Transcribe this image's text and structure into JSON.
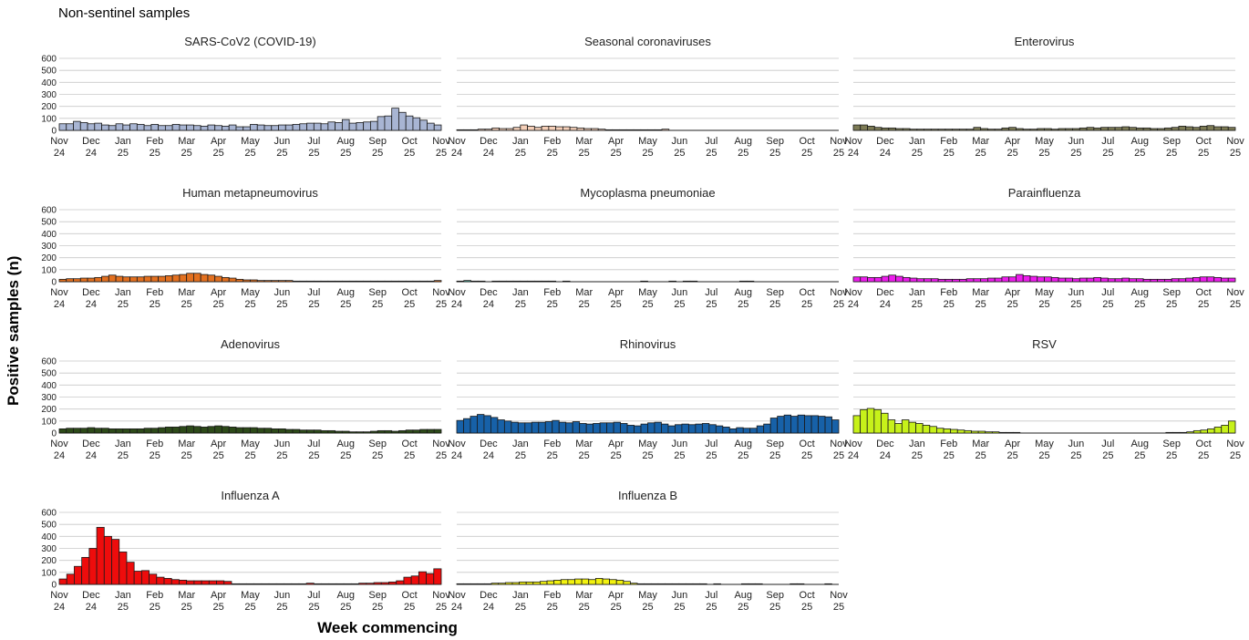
{
  "title": "Non-sentinel samples",
  "xlabel": "Week commencing",
  "ylabel": "Positive samples (n)",
  "chart_data": {
    "type": "bar",
    "ylim": [
      0,
      600
    ],
    "yticks": [
      0,
      100,
      200,
      300,
      400,
      500,
      600
    ],
    "grid": true,
    "x_tick_labels": [
      [
        "Nov",
        "24"
      ],
      [
        "Dec",
        "24"
      ],
      [
        "Jan",
        "25"
      ],
      [
        "Feb",
        "25"
      ],
      [
        "Mar",
        "25"
      ],
      [
        "Apr",
        "25"
      ],
      [
        "May",
        "25"
      ],
      [
        "Jun",
        "25"
      ],
      [
        "Jul",
        "25"
      ],
      [
        "Aug",
        "25"
      ],
      [
        "Sep",
        "25"
      ],
      [
        "Oct",
        "25"
      ],
      [
        "Nov",
        "25"
      ]
    ],
    "panels": [
      {
        "name": "SARS-CoV2 (COVID-19)",
        "color": "#a8b5d3",
        "values": [
          55,
          55,
          75,
          65,
          55,
          60,
          45,
          40,
          55,
          45,
          55,
          50,
          40,
          50,
          40,
          40,
          50,
          45,
          45,
          40,
          35,
          45,
          40,
          35,
          45,
          30,
          30,
          50,
          45,
          40,
          40,
          45,
          45,
          50,
          55,
          60,
          60,
          55,
          70,
          65,
          90,
          60,
          65,
          70,
          75,
          115,
          120,
          185,
          150,
          120,
          105,
          85,
          60,
          45
        ]
      },
      {
        "name": "Seasonal coronaviruses",
        "color": "#f5cfb8",
        "values": [
          5,
          5,
          5,
          10,
          10,
          20,
          15,
          15,
          25,
          45,
          35,
          25,
          35,
          35,
          30,
          30,
          25,
          20,
          15,
          15,
          10,
          5,
          5,
          5,
          5,
          5,
          5,
          5,
          5,
          10,
          0,
          0,
          0,
          0,
          0,
          0,
          0,
          0,
          0,
          0,
          0,
          0,
          0,
          0,
          0,
          0,
          0,
          0,
          0,
          0,
          0,
          0,
          0,
          0
        ]
      },
      {
        "name": "Enterovirus",
        "color": "#7d7b55",
        "values": [
          45,
          45,
          35,
          25,
          20,
          20,
          15,
          15,
          10,
          10,
          10,
          10,
          10,
          10,
          10,
          10,
          10,
          25,
          15,
          10,
          10,
          20,
          25,
          15,
          10,
          10,
          15,
          15,
          10,
          15,
          15,
          15,
          20,
          25,
          20,
          25,
          25,
          25,
          30,
          25,
          20,
          20,
          15,
          15,
          20,
          25,
          35,
          30,
          25,
          35,
          40,
          30,
          30,
          25
        ]
      },
      {
        "name": "Human metapneumovirus",
        "color": "#e3701f",
        "values": [
          20,
          25,
          25,
          30,
          30,
          35,
          45,
          55,
          45,
          40,
          40,
          40,
          45,
          45,
          45,
          50,
          55,
          60,
          70,
          70,
          60,
          55,
          45,
          35,
          30,
          20,
          15,
          15,
          10,
          10,
          10,
          10,
          10,
          5,
          5,
          5,
          5,
          5,
          5,
          5,
          5,
          5,
          5,
          5,
          5,
          5,
          5,
          5,
          5,
          5,
          5,
          5,
          5,
          10
        ]
      },
      {
        "name": "Mycoplasma pneumoniae",
        "color": "#52b7a4",
        "values": [
          5,
          10,
          5,
          5,
          0,
          5,
          5,
          5,
          5,
          5,
          5,
          5,
          5,
          5,
          0,
          5,
          0,
          0,
          0,
          0,
          0,
          0,
          0,
          0,
          0,
          0,
          5,
          0,
          0,
          0,
          5,
          0,
          5,
          5,
          0,
          0,
          0,
          0,
          0,
          0,
          5,
          5,
          0,
          0,
          0,
          0,
          0,
          0,
          0,
          0,
          0,
          0,
          0,
          0
        ]
      },
      {
        "name": "Parainfluenza",
        "color": "#ee1cee",
        "values": [
          40,
          40,
          35,
          35,
          45,
          55,
          45,
          35,
          30,
          25,
          25,
          25,
          20,
          20,
          20,
          20,
          25,
          25,
          25,
          30,
          30,
          40,
          40,
          60,
          50,
          45,
          40,
          40,
          35,
          30,
          30,
          25,
          30,
          30,
          35,
          30,
          25,
          25,
          30,
          25,
          25,
          20,
          20,
          20,
          20,
          25,
          25,
          30,
          35,
          40,
          40,
          35,
          30,
          30
        ]
      },
      {
        "name": "Adenovirus",
        "color": "#2d4a19",
        "values": [
          35,
          40,
          40,
          40,
          45,
          40,
          40,
          35,
          35,
          35,
          35,
          35,
          40,
          40,
          45,
          50,
          50,
          55,
          60,
          55,
          50,
          55,
          60,
          55,
          50,
          45,
          45,
          45,
          40,
          40,
          35,
          35,
          30,
          30,
          25,
          25,
          25,
          20,
          20,
          15,
          15,
          10,
          10,
          10,
          15,
          20,
          20,
          15,
          20,
          25,
          25,
          30,
          30,
          30
        ]
      },
      {
        "name": "Rhinovirus",
        "color": "#1761a8",
        "values": [
          105,
          120,
          140,
          155,
          145,
          130,
          110,
          100,
          90,
          85,
          85,
          90,
          90,
          95,
          105,
          90,
          85,
          95,
          80,
          75,
          80,
          85,
          85,
          90,
          80,
          65,
          60,
          75,
          85,
          90,
          75,
          60,
          70,
          75,
          70,
          75,
          80,
          70,
          60,
          50,
          35,
          45,
          40,
          40,
          60,
          75,
          125,
          140,
          150,
          140,
          150,
          145,
          145,
          140,
          135,
          110
        ]
      },
      {
        "name": "RSV",
        "color": "#c7f11a",
        "values": [
          145,
          195,
          205,
          195,
          165,
          110,
          80,
          110,
          90,
          80,
          65,
          55,
          40,
          35,
          30,
          25,
          20,
          15,
          15,
          10,
          10,
          5,
          5,
          5,
          0,
          0,
          0,
          0,
          0,
          0,
          0,
          0,
          0,
          0,
          0,
          0,
          0,
          0,
          0,
          0,
          0,
          0,
          0,
          0,
          0,
          5,
          5,
          5,
          10,
          20,
          25,
          35,
          50,
          65,
          100
        ]
      },
      {
        "name": "Influenza A",
        "color": "#ee0c0c",
        "values": [
          45,
          85,
          150,
          225,
          300,
          475,
          400,
          375,
          270,
          185,
          110,
          115,
          85,
          60,
          50,
          40,
          35,
          30,
          30,
          30,
          30,
          30,
          25,
          5,
          5,
          5,
          5,
          5,
          5,
          5,
          5,
          5,
          5,
          10,
          5,
          5,
          5,
          5,
          5,
          5,
          10,
          10,
          15,
          15,
          20,
          30,
          60,
          70,
          105,
          90,
          130
        ]
      },
      {
        "name": "Influenza B",
        "color": "#f2f20f",
        "values": [
          5,
          5,
          5,
          5,
          5,
          10,
          10,
          15,
          15,
          20,
          20,
          20,
          25,
          30,
          35,
          40,
          40,
          45,
          45,
          40,
          50,
          45,
          40,
          35,
          25,
          10,
          5,
          5,
          5,
          5,
          5,
          5,
          5,
          5,
          5,
          5,
          0,
          5,
          0,
          0,
          0,
          5,
          5,
          5,
          0,
          0,
          0,
          0,
          5,
          5,
          0,
          0,
          0,
          5,
          0
        ]
      }
    ]
  }
}
